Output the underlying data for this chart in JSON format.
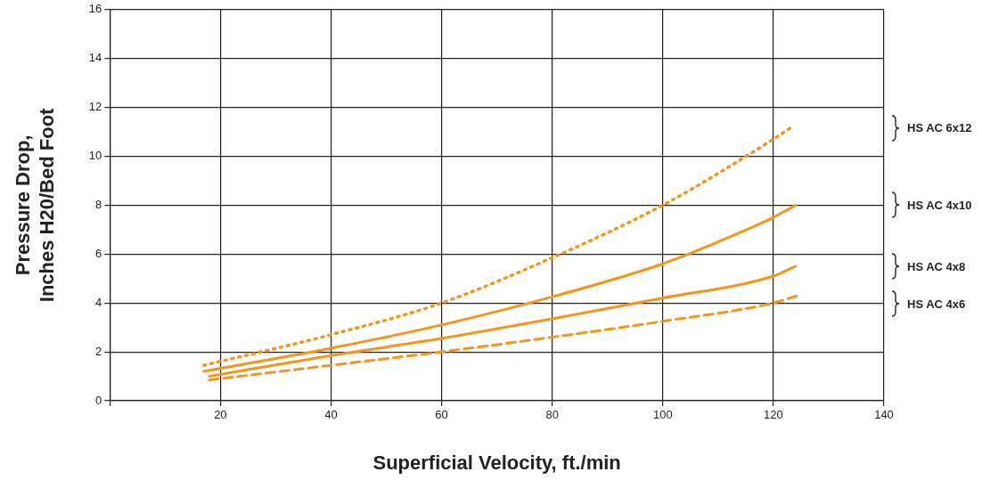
{
  "chart_data": {
    "type": "line",
    "xlabel": "Superficial Velocity, ft./min",
    "ylabel": "Pressure Drop,\nInches H20/Bed Foot",
    "xlim": [
      0,
      140
    ],
    "xticks": [
      {
        "value": 0,
        "label": null
      },
      20,
      40,
      60,
      80,
      100,
      120,
      140
    ],
    "ylim": [
      0,
      16
    ],
    "yticks": [
      0,
      2,
      4,
      6,
      8,
      10,
      12,
      14,
      16
    ],
    "grid": true,
    "legend": "right",
    "marker": "none",
    "series": [
      {
        "name": "HS AC 6x12",
        "color": "#f7941d",
        "line_style": "dotted",
        "x": [
          17,
          40,
          60,
          80,
          100,
          120,
          123
        ],
        "values": [
          1.45,
          2.7,
          4.0,
          5.85,
          8.0,
          10.7,
          11.15
        ]
      },
      {
        "name": "HS AC 4x10",
        "color": "#f7941d",
        "line_style": "solid",
        "x": [
          17,
          40,
          60,
          80,
          100,
          110,
          120,
          124
        ],
        "values": [
          1.2,
          2.15,
          3.1,
          4.25,
          5.6,
          6.5,
          7.5,
          8.0
        ]
      },
      {
        "name": "HS AC 4x8",
        "color": "#f7941d",
        "line_style": "solid",
        "x": [
          18,
          40,
          60,
          80,
          100,
          120,
          124
        ],
        "values": [
          1.0,
          1.85,
          2.55,
          3.35,
          4.2,
          5.1,
          5.5
        ]
      },
      {
        "name": "HS AC 4x6",
        "color": "#f7941d",
        "line_style": "dashed",
        "x": [
          18,
          40,
          60,
          80,
          100,
          120,
          125
        ],
        "values": [
          0.85,
          1.45,
          2.0,
          2.6,
          3.25,
          4.0,
          4.35
        ]
      }
    ]
  }
}
